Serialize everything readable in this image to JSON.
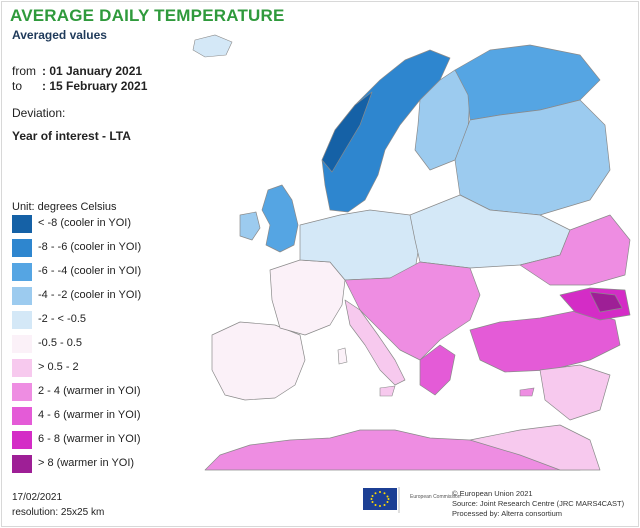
{
  "title": "AVERAGE DAILY TEMPERATURE",
  "subtitle": "Averaged values",
  "period": {
    "from_label": "from",
    "from_value": ": 01 January 2021",
    "to_label": "to",
    "to_value": ": 15 February 2021"
  },
  "deviation_label": "Deviation:",
  "deviation_value": "Year of interest - LTA",
  "legend": {
    "unit": "Unit: degrees Celsius",
    "items": [
      {
        "label": "< -8 (cooler in YOI)",
        "color": "#1561a6"
      },
      {
        "label": "-8 - -6 (cooler in YOI)",
        "color": "#2e86cf"
      },
      {
        "label": "-6 - -4 (cooler in YOI)",
        "color": "#55a5e3"
      },
      {
        "label": "-4 - -2 (cooler in YOI)",
        "color": "#9ccbef"
      },
      {
        "label": "-2 - < -0.5",
        "color": "#d4e8f7"
      },
      {
        "label": "-0.5 - 0.5",
        "color": "#fbf1f8"
      },
      {
        "label": "> 0.5 - 2",
        "color": "#f7c9ee"
      },
      {
        "label": "2 - 4 (warmer in YOI)",
        "color": "#ee8de2"
      },
      {
        "label": "4 - 6 (warmer in YOI)",
        "color": "#e45bd7"
      },
      {
        "label": "6 - 8 (warmer in YOI)",
        "color": "#d42cc6"
      },
      {
        "label": "> 8 (warmer in YOI)",
        "color": "#9e1f96"
      }
    ]
  },
  "footer": {
    "date": "17/02/2021",
    "resolution": "resolution: 25x25 km",
    "eu_logo_caption": "European Commission",
    "credits": [
      "© European Union 2021",
      "Source: Joint Research Centre (JRC MARS4CAST)",
      "Processed by: Alterra consortium"
    ]
  },
  "colors": {
    "title": "#2f9a3c",
    "sea": "#ffffff",
    "border_line": "#8a8a8a",
    "eu_flag": "#1c3f94",
    "eu_star": "#ffdd00"
  }
}
